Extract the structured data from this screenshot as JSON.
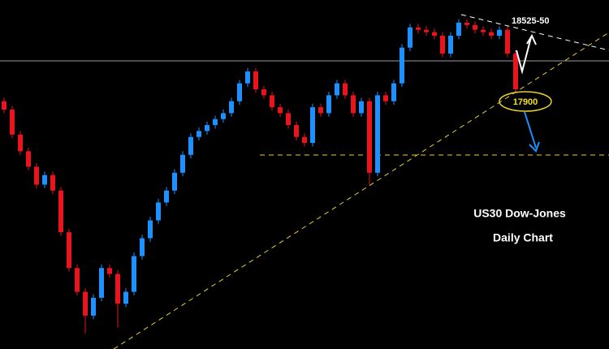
{
  "chart_data": {
    "type": "candlestick",
    "title": "US30 Dow-Jones",
    "subtitle": "Daily Chart",
    "annotations": [
      "18525-50",
      "17900"
    ],
    "up_color": "#1e90ff",
    "down_color": "#e8141e",
    "ylim": [
      15820,
      18750
    ],
    "open": [
      17900,
      17830,
      17620,
      17480,
      17350,
      17200,
      17280,
      17150,
      16800,
      16500,
      16300,
      16100,
      16250,
      16500,
      16450,
      16200,
      16300,
      16600,
      16750,
      16900,
      17050,
      17150,
      17300,
      17450,
      17600,
      17650,
      17700,
      17750,
      17800,
      17900,
      18050,
      18150,
      18000,
      17950,
      17850,
      17800,
      17700,
      17600,
      17550,
      17850,
      17800,
      17950,
      18050,
      17950,
      17800,
      17900,
      17300,
      17950,
      17900,
      18050,
      18350,
      18520,
      18500,
      18480,
      18450,
      18300,
      18450,
      18560,
      18540,
      18500,
      18480,
      18450,
      18500,
      18300
    ],
    "high": [
      17930,
      17860,
      17650,
      17510,
      17380,
      17310,
      17310,
      17180,
      16830,
      16530,
      16330,
      16280,
      16530,
      16530,
      16480,
      16330,
      16630,
      16780,
      16930,
      17080,
      17180,
      17330,
      17480,
      17630,
      17680,
      17730,
      17780,
      17830,
      17930,
      18080,
      18180,
      18180,
      18030,
      17980,
      17880,
      17830,
      17730,
      17630,
      17880,
      17880,
      17980,
      18080,
      18080,
      17980,
      17930,
      17930,
      17980,
      17980,
      18080,
      18380,
      18550,
      18550,
      18530,
      18510,
      18480,
      18480,
      18590,
      18590,
      18570,
      18530,
      18510,
      18530,
      18530,
      18330
    ],
    "low": [
      17800,
      17590,
      17450,
      17320,
      17170,
      17170,
      17120,
      16770,
      16470,
      16270,
      15950,
      16070,
      16220,
      16420,
      16000,
      16170,
      16270,
      16570,
      16720,
      16870,
      17020,
      17120,
      17270,
      17420,
      17570,
      17620,
      17670,
      17720,
      17770,
      17870,
      18020,
      17970,
      17920,
      17820,
      17770,
      17670,
      17570,
      17520,
      17520,
      17770,
      17770,
      17920,
      17920,
      17770,
      17770,
      17200,
      17270,
      17870,
      17870,
      18020,
      18320,
      18470,
      18450,
      18420,
      18270,
      18270,
      18420,
      18510,
      18470,
      18450,
      18420,
      18420,
      18270,
      17970
    ],
    "close": [
      17830,
      17620,
      17480,
      17350,
      17200,
      17280,
      17150,
      16800,
      16500,
      16300,
      16100,
      16250,
      16500,
      16450,
      16200,
      16300,
      16600,
      16750,
      16900,
      17050,
      17150,
      17300,
      17450,
      17600,
      17650,
      17700,
      17750,
      17800,
      17900,
      18050,
      18150,
      18000,
      17950,
      17850,
      17800,
      17700,
      17600,
      17550,
      17850,
      17800,
      17950,
      18050,
      17950,
      17800,
      17900,
      17300,
      17950,
      17900,
      18050,
      18350,
      18520,
      18500,
      18480,
      18450,
      18300,
      18450,
      18560,
      18540,
      18500,
      18480,
      18450,
      18500,
      18300,
      18000
    ]
  }
}
